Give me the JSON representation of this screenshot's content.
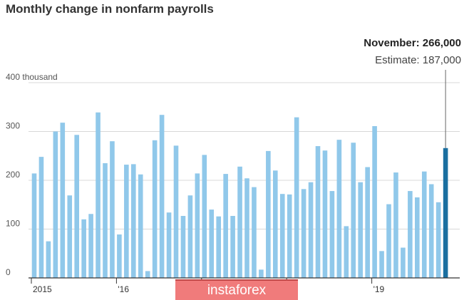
{
  "chart_data": {
    "type": "bar",
    "title": "Monthly change in nonfarm payrolls",
    "ylim": [
      0,
      400
    ],
    "y_ticks": [
      "400 thousand",
      "300",
      "200",
      "100",
      "0"
    ],
    "y_tick_values": [
      400,
      300,
      200,
      100,
      0
    ],
    "x_tick_labels": [
      "2015",
      "'16",
      "",
      "",
      "'19"
    ],
    "x_tick_index": [
      0,
      12,
      24,
      36,
      48
    ],
    "grid": true,
    "bar_color": "#90c8ea",
    "highlight_color": "#1a6fa0",
    "values": [
      214,
      248,
      75,
      300,
      318,
      169,
      293,
      120,
      131,
      339,
      235,
      280,
      89,
      232,
      233,
      212,
      14,
      282,
      334,
      134,
      271,
      127,
      169,
      214,
      252,
      140,
      126,
      213,
      127,
      228,
      204,
      186,
      17,
      260,
      220,
      172,
      171,
      329,
      182,
      196,
      270,
      261,
      178,
      283,
      106,
      277,
      196,
      227,
      311,
      55,
      151,
      216,
      62,
      178,
      165,
      218,
      192,
      155,
      266
    ],
    "callout": {
      "label": "November: 266,000",
      "estimate": "Estimate: 187,000"
    }
  },
  "watermark": "instaforex"
}
